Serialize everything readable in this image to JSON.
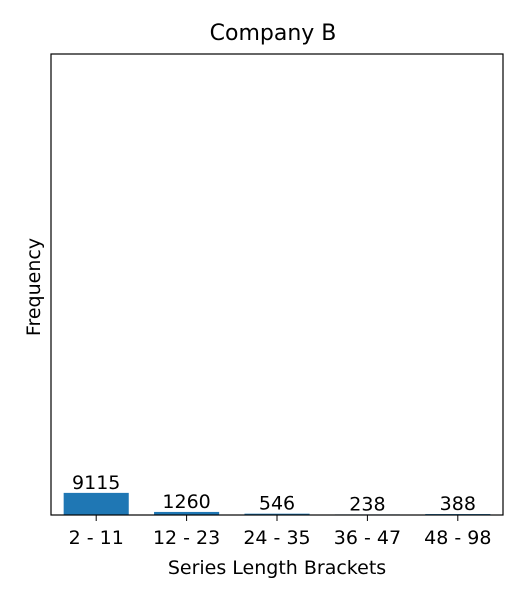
{
  "chart_data": {
    "type": "bar",
    "title": "Company B",
    "xlabel": "Series Length Brackets",
    "ylabel": "Frequency",
    "categories": [
      "2 - 11",
      "12 - 23",
      "24 - 35",
      "36 - 47",
      "48 - 98"
    ],
    "values": [
      9115,
      1260,
      546,
      238,
      388
    ],
    "value_labels": [
      "9115",
      "1260",
      "546",
      "238",
      "388"
    ],
    "ylim": [
      0,
      190000
    ],
    "grid": false,
    "show_y_ticks": false,
    "legend": "none",
    "bar_color": "#1f77b4"
  }
}
